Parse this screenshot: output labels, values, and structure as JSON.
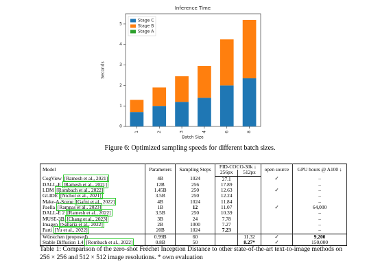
{
  "chart_data": {
    "type": "stacked-bar",
    "title": "Inference Time",
    "x_label": "Batch Size",
    "y_label": "Seconds",
    "categories": [
      "1",
      "2",
      "3",
      "4",
      "6",
      "8"
    ],
    "series": [
      {
        "name": "Stage C",
        "color": "#1f77b4",
        "values": [
          0.7,
          1.0,
          1.2,
          1.4,
          2.0,
          2.35
        ]
      },
      {
        "name": "Stage B",
        "color": "#ff7f0e",
        "values": [
          0.6,
          0.9,
          1.25,
          1.55,
          2.25,
          2.85
        ]
      },
      {
        "name": "Stage A",
        "color": "#2ca02c",
        "values": [
          0,
          0,
          0,
          0,
          0,
          0
        ]
      }
    ],
    "ylim": [
      0,
      5.5
    ],
    "yticks": [
      0,
      1,
      2,
      3,
      4,
      5
    ],
    "legend": "upper left"
  },
  "figure_caption": "Figure 6: Optimized sampling speeds for different batch sizes.",
  "table": {
    "header": [
      "Model",
      "Parameters",
      "Sampling Steps",
      "FID-COCO-30k ↓",
      "open source",
      "GPU hours @ A100 ↓"
    ],
    "subheader": [
      "256px",
      "512px"
    ],
    "rows": [
      {
        "model": "CogView",
        "cite": "[Ramesh et al., 2021]",
        "params": "4B",
        "steps": "1024",
        "fid256": "27.1",
        "open": "✓",
        "gpu": "–"
      },
      {
        "model": "DALL-E",
        "cite": "[Ramesh et al., 2021]",
        "params": "12B",
        "steps": "256",
        "fid256": "17.89",
        "gpu": "–"
      },
      {
        "model": "LDM",
        "cite": "[Rombach et al., 2022]",
        "params": "1.45B",
        "steps": "250",
        "fid256": "12.63",
        "open": "✓",
        "gpu": "–"
      },
      {
        "model": "GLIDE",
        "cite": "[Nichol et al., 2021]",
        "params": "3.5B",
        "steps": "250",
        "fid256": "12.24",
        "gpu": "–"
      },
      {
        "model": "Make-A-Scene",
        "cite": "[Gafni et al., 2022]",
        "params": "4B",
        "steps": "1024",
        "fid256": "11.84",
        "gpu": "–"
      },
      {
        "model": "Paella",
        "cite": "[Rampas et al., 2023]",
        "params": "1B",
        "steps": "12",
        "fid256": "11.07",
        "open": "✓",
        "gpu": "64,000",
        "bold": [
          "steps"
        ]
      },
      {
        "model": "DALL-E 2",
        "cite": "[Ramesh et al., 2022]",
        "params": "3.5B",
        "steps": "250",
        "fid256": "10.39",
        "gpu": "–"
      },
      {
        "model": "MUSE-3B",
        "cite": "[Chang et al., 2023]",
        "params": "3B",
        "steps": "24",
        "fid256": "7.78",
        "gpu": "–"
      },
      {
        "model": "Imagen",
        "cite": "[Saharia et al., 2022]",
        "params": "2B",
        "steps": "1000",
        "fid256": "7.27",
        "gpu": "–"
      },
      {
        "model": "Parti",
        "cite": "[Yu et al., 2022]",
        "params": "20B",
        "steps": "1024",
        "fid256": "7.23",
        "gpu": "–",
        "bold": [
          "fid256"
        ]
      },
      {
        "model": "Würstchen (proposed)",
        "params": "0.99B",
        "steps": "60",
        "fid512": "11.32",
        "open": "✓",
        "gpu": "9,200",
        "bold": [
          "gpu"
        ]
      },
      {
        "model": "Stable Diffusion 1.4",
        "cite": "[Rombach et al., 2022]",
        "params": "0.8B",
        "steps": "50",
        "fid512": "8.27*",
        "open": "✓",
        "gpu": "150,000",
        "bold": [
          "fid512"
        ]
      }
    ],
    "caption": "Table 1: Comparison of the zero-shot Fréchet Inception Distance to other state-of-the-art text-to-image methods on 256 × 256 and 512 × 512 image resolutions. * own evaluation"
  }
}
